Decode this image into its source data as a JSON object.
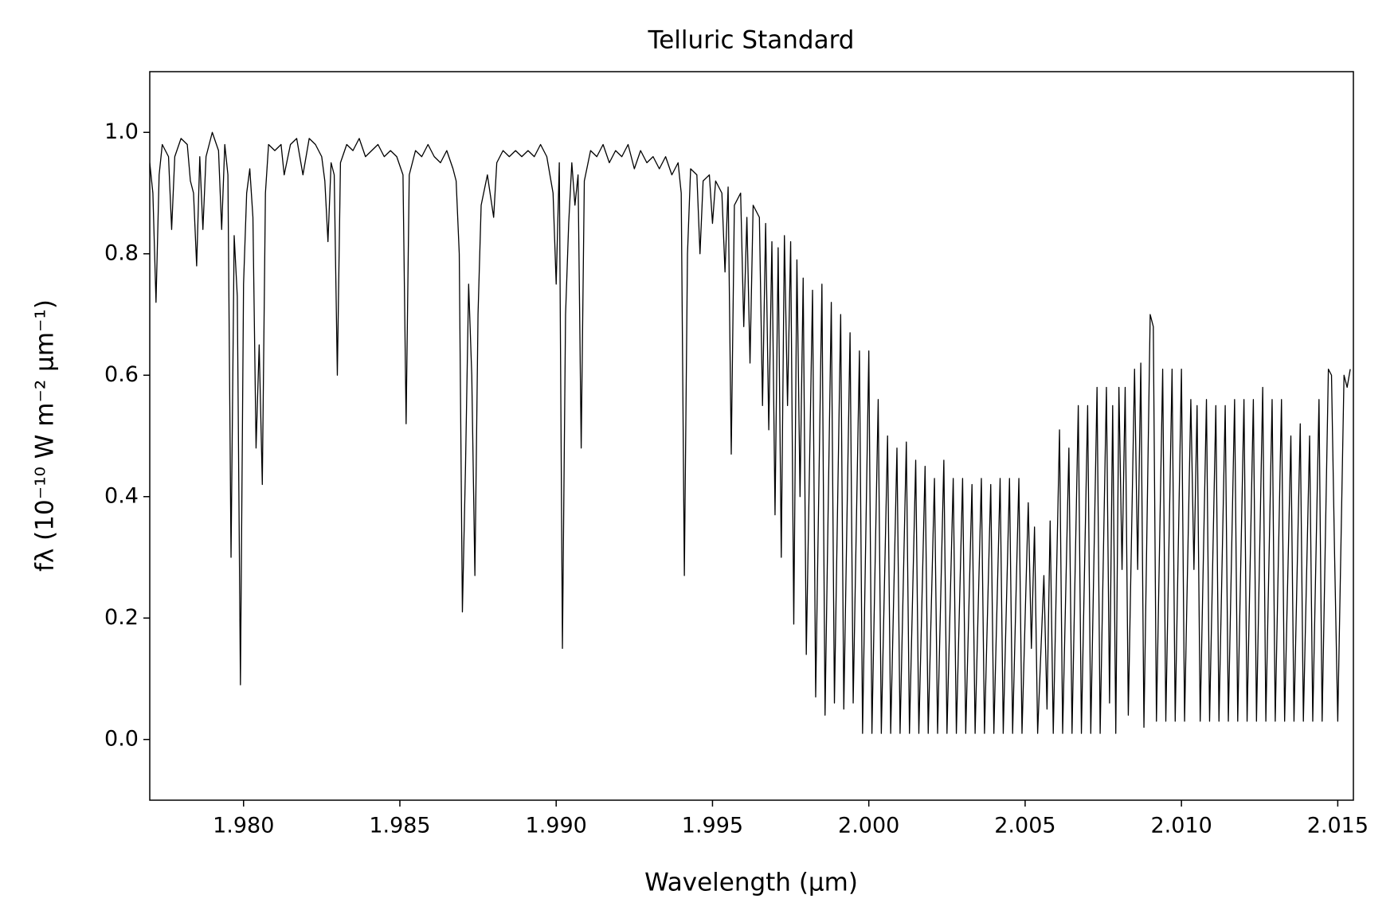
{
  "chart_data": {
    "type": "line",
    "title": "Telluric Standard",
    "x_label": "Wavelength (μm)",
    "y_label": "fλ (10⁻¹⁰ W m⁻² μm⁻¹)",
    "color": "#000000",
    "grid": false,
    "xlim": [
      1.977,
      2.0155
    ],
    "ylim": [
      -0.1,
      1.1
    ],
    "xticks": [
      {
        "value": 1.98,
        "label": "1.980"
      },
      1.985,
      {
        "value": 1.99,
        "label": "1.990"
      },
      1.995,
      {
        "value": 2.0,
        "label": "2.000"
      },
      2.005,
      {
        "value": 2.01,
        "label": "2.010"
      },
      2.015
    ],
    "yticks": [
      {
        "value": 0,
        "label": "0.0"
      },
      0.2,
      0.4,
      0.6,
      0.8,
      {
        "value": 1,
        "label": "1.0"
      }
    ],
    "x": [
      1.977,
      1.9771,
      1.9772,
      1.9773,
      1.9774,
      1.9776,
      1.9777,
      1.9778,
      1.978,
      1.9782,
      1.9783,
      1.9784,
      1.9785,
      1.9786,
      1.9787,
      1.9788,
      1.979,
      1.9792,
      1.9793,
      1.9794,
      1.9795,
      1.9796,
      1.9797,
      1.9798,
      1.9799,
      1.98,
      1.9801,
      1.9802,
      1.9803,
      1.9804,
      1.9805,
      1.9806,
      1.9807,
      1.9808,
      1.981,
      1.9812,
      1.9813,
      1.9815,
      1.9817,
      1.9819,
      1.9821,
      1.9823,
      1.9825,
      1.9826,
      1.9827,
      1.9828,
      1.9829,
      1.983,
      1.9831,
      1.9833,
      1.9835,
      1.9837,
      1.9839,
      1.9841,
      1.9843,
      1.9845,
      1.9847,
      1.9849,
      1.9851,
      1.9852,
      1.9853,
      1.9855,
      1.9857,
      1.9859,
      1.9861,
      1.9863,
      1.9865,
      1.9867,
      1.9868,
      1.9869,
      1.987,
      1.9871,
      1.9872,
      1.9873,
      1.9874,
      1.9875,
      1.9876,
      1.9878,
      1.988,
      1.9881,
      1.9883,
      1.9885,
      1.9887,
      1.9889,
      1.9891,
      1.9893,
      1.9895,
      1.9897,
      1.9899,
      1.99,
      1.9901,
      1.9902,
      1.9903,
      1.9904,
      1.9905,
      1.9906,
      1.9907,
      1.9908,
      1.9909,
      1.9911,
      1.9913,
      1.9915,
      1.9917,
      1.9919,
      1.9921,
      1.9923,
      1.9925,
      1.9927,
      1.9929,
      1.9931,
      1.9933,
      1.9935,
      1.9937,
      1.9939,
      1.994,
      1.9941,
      1.9942,
      1.9943,
      1.9945,
      1.9946,
      1.9947,
      1.9949,
      1.995,
      1.9951,
      1.9953,
      1.9954,
      1.9955,
      1.9956,
      1.9957,
      1.9959,
      1.996,
      1.9961,
      1.9962,
      1.9963,
      1.9965,
      1.9966,
      1.9967,
      1.9968,
      1.9969,
      1.997,
      1.9971,
      1.9972,
      1.9973,
      1.9974,
      1.9975,
      1.9976,
      1.9977,
      1.9978,
      1.9979,
      1.998,
      1.9982,
      1.9983,
      1.9985,
      1.9986,
      1.9988,
      1.9989,
      1.9991,
      1.9992,
      1.9994,
      1.9995,
      1.9997,
      1.9998,
      2.0,
      2.0001,
      2.0003,
      2.0004,
      2.0006,
      2.0007,
      2.0009,
      2.001,
      2.0012,
      2.0013,
      2.0015,
      2.0016,
      2.0018,
      2.0019,
      2.0021,
      2.0022,
      2.0024,
      2.0025,
      2.0027,
      2.0028,
      2.003,
      2.0031,
      2.0033,
      2.0034,
      2.0036,
      2.0037,
      2.0039,
      2.004,
      2.0042,
      2.0043,
      2.0045,
      2.0046,
      2.0048,
      2.0049,
      2.0051,
      2.0052,
      2.0053,
      2.0054,
      2.0056,
      2.0057,
      2.0058,
      2.0059,
      2.0061,
      2.0062,
      2.0064,
      2.0065,
      2.0067,
      2.0068,
      2.007,
      2.0071,
      2.0073,
      2.0074,
      2.0076,
      2.0077,
      2.0078,
      2.0079,
      2.008,
      2.0081,
      2.0082,
      2.0083,
      2.0085,
      2.0086,
      2.0087,
      2.0088,
      2.009,
      2.0091,
      2.0092,
      2.0094,
      2.0095,
      2.0097,
      2.0098,
      2.01,
      2.0101,
      2.0103,
      2.0104,
      2.0105,
      2.0106,
      2.0108,
      2.0109,
      2.0111,
      2.0112,
      2.0114,
      2.0115,
      2.0117,
      2.0118,
      2.012,
      2.0121,
      2.0123,
      2.0124,
      2.0126,
      2.0127,
      2.0129,
      2.013,
      2.0132,
      2.0133,
      2.0135,
      2.0136,
      2.0138,
      2.0139,
      2.0141,
      2.0142,
      2.0144,
      2.0145,
      2.0147,
      2.0148,
      2.0149,
      2.015,
      2.0152,
      2.0153,
      2.0154
    ],
    "values": [
      0.95,
      0.9,
      0.72,
      0.93,
      0.98,
      0.96,
      0.84,
      0.96,
      0.99,
      0.98,
      0.92,
      0.9,
      0.78,
      0.96,
      0.84,
      0.96,
      1.0,
      0.97,
      0.84,
      0.98,
      0.93,
      0.3,
      0.83,
      0.73,
      0.09,
      0.75,
      0.9,
      0.94,
      0.86,
      0.48,
      0.65,
      0.42,
      0.9,
      0.98,
      0.97,
      0.98,
      0.93,
      0.98,
      0.99,
      0.93,
      0.99,
      0.98,
      0.96,
      0.92,
      0.82,
      0.95,
      0.93,
      0.6,
      0.95,
      0.98,
      0.97,
      0.99,
      0.96,
      0.97,
      0.98,
      0.96,
      0.97,
      0.96,
      0.93,
      0.52,
      0.93,
      0.97,
      0.96,
      0.98,
      0.96,
      0.95,
      0.97,
      0.94,
      0.92,
      0.8,
      0.21,
      0.45,
      0.75,
      0.6,
      0.27,
      0.7,
      0.88,
      0.93,
      0.86,
      0.95,
      0.97,
      0.96,
      0.97,
      0.96,
      0.97,
      0.96,
      0.98,
      0.96,
      0.9,
      0.75,
      0.95,
      0.15,
      0.7,
      0.85,
      0.95,
      0.88,
      0.93,
      0.48,
      0.92,
      0.97,
      0.96,
      0.98,
      0.95,
      0.97,
      0.96,
      0.98,
      0.94,
      0.97,
      0.95,
      0.96,
      0.94,
      0.96,
      0.93,
      0.95,
      0.9,
      0.27,
      0.8,
      0.94,
      0.93,
      0.8,
      0.92,
      0.93,
      0.85,
      0.92,
      0.9,
      0.77,
      0.91,
      0.47,
      0.88,
      0.9,
      0.68,
      0.86,
      0.62,
      0.88,
      0.86,
      0.55,
      0.85,
      0.51,
      0.82,
      0.37,
      0.81,
      0.3,
      0.83,
      0.55,
      0.82,
      0.19,
      0.79,
      0.4,
      0.76,
      0.14,
      0.74,
      0.07,
      0.75,
      0.04,
      0.72,
      0.06,
      0.7,
      0.05,
      0.67,
      0.06,
      0.64,
      0.01,
      0.64,
      0.01,
      0.56,
      0.01,
      0.5,
      0.01,
      0.48,
      0.01,
      0.49,
      0.01,
      0.46,
      0.01,
      0.45,
      0.01,
      0.43,
      0.01,
      0.46,
      0.01,
      0.43,
      0.01,
      0.43,
      0.01,
      0.42,
      0.01,
      0.43,
      0.01,
      0.42,
      0.01,
      0.43,
      0.01,
      0.43,
      0.01,
      0.43,
      0.01,
      0.39,
      0.15,
      0.35,
      0.01,
      0.27,
      0.05,
      0.36,
      0.01,
      0.51,
      0.01,
      0.48,
      0.01,
      0.55,
      0.01,
      0.55,
      0.01,
      0.58,
      0.01,
      0.58,
      0.06,
      0.55,
      0.01,
      0.58,
      0.28,
      0.58,
      0.04,
      0.61,
      0.28,
      0.62,
      0.02,
      0.7,
      0.68,
      0.03,
      0.61,
      0.03,
      0.61,
      0.03,
      0.61,
      0.03,
      0.56,
      0.28,
      0.55,
      0.03,
      0.56,
      0.03,
      0.55,
      0.03,
      0.55,
      0.03,
      0.56,
      0.03,
      0.56,
      0.03,
      0.56,
      0.03,
      0.58,
      0.03,
      0.56,
      0.03,
      0.56,
      0.03,
      0.5,
      0.03,
      0.52,
      0.03,
      0.5,
      0.03,
      0.56,
      0.03,
      0.61,
      0.6,
      0.3,
      0.03,
      0.6,
      0.58,
      0.61
    ]
  }
}
